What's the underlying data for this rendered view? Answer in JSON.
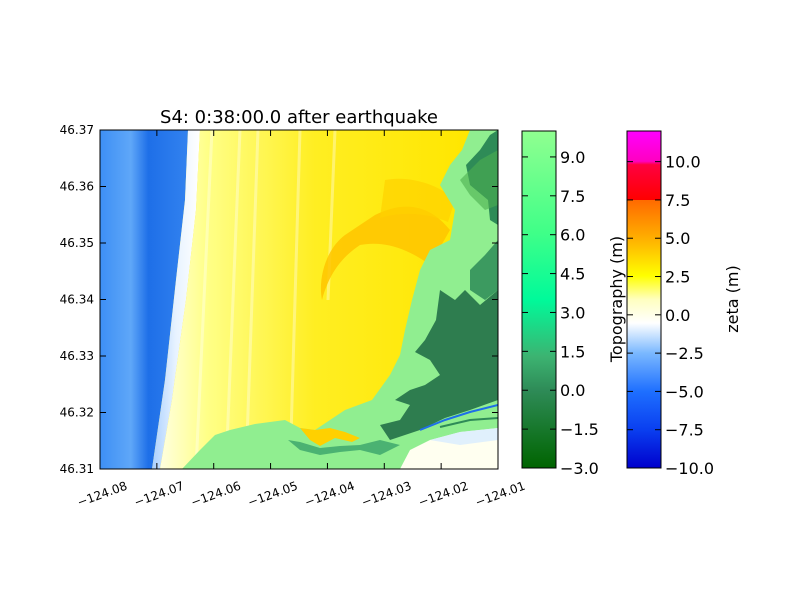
{
  "chart_data": [
    {
      "type": "heatmap",
      "title": "S4: 0:38:00.0 after earthquake",
      "xlabel": "",
      "ylabel": "",
      "xlim": [
        -124.08,
        -124.01
      ],
      "ylim": [
        46.31,
        46.37
      ],
      "x_ticks": [
        -124.08,
        -124.07,
        -124.06,
        -124.05,
        -124.04,
        -124.03,
        -124.02,
        -124.01
      ],
      "x_tick_labels": [
        "−124.08",
        "−124.07",
        "−124.06",
        "−124.05",
        "−124.04",
        "−124.03",
        "−124.02",
        "−124.01"
      ],
      "y_ticks": [
        46.31,
        46.32,
        46.33,
        46.34,
        46.35,
        46.36,
        46.37
      ],
      "y_tick_labels": [
        "46.31",
        "46.32",
        "46.33",
        "46.34",
        "46.35",
        "46.36",
        "46.37"
      ],
      "grid": false
    },
    {
      "type": "colorbar",
      "label": "Topography (m)",
      "range": [
        -3.0,
        10.0
      ],
      "ticks": [
        -3.0,
        -1.5,
        0.0,
        1.5,
        3.0,
        4.5,
        6.0,
        7.5,
        9.0
      ],
      "tick_labels": [
        "−3.0",
        "−1.5",
        "0.0",
        "1.5",
        "3.0",
        "4.5",
        "6.0",
        "7.5",
        "9.0"
      ],
      "colors": [
        "#006400",
        "#3cb371",
        "#00fa9a",
        "#7fff7f",
        "#90ee90"
      ]
    },
    {
      "type": "colorbar",
      "label": "zeta (m)",
      "range": [
        -10.0,
        12.0
      ],
      "ticks": [
        -10.0,
        -7.5,
        -5.0,
        -2.5,
        0.0,
        2.5,
        5.0,
        7.5,
        10.0
      ],
      "tick_labels": [
        "−10.0",
        "−7.5",
        "−5.0",
        "−2.5",
        "0.0",
        "2.5",
        "5.0",
        "7.5",
        "10.0"
      ],
      "colors": [
        "#0000cc",
        "#1e6fff",
        "#7ab8ff",
        "#ffffff",
        "#ffff00",
        "#ffa500",
        "#ff0000",
        "#ff00ff"
      ]
    }
  ]
}
